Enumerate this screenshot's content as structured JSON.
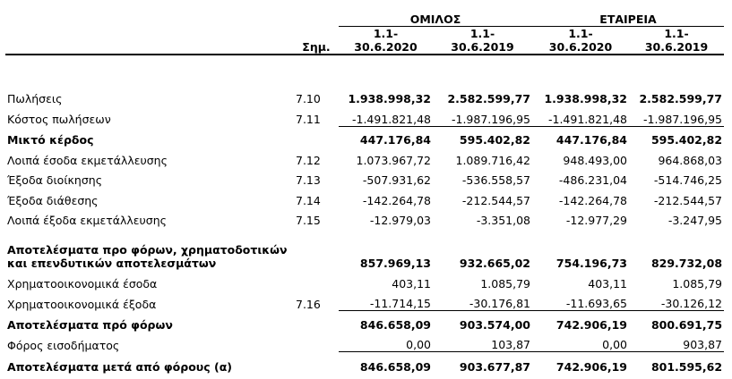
{
  "header": {
    "note_label": "Σημ.",
    "group_label": "ΟΜΙΛΟΣ",
    "company_label": "ΕΤΑΙΡΕΙΑ",
    "periods": [
      {
        "line1": "1.1-",
        "line2": "30.6.2020"
      },
      {
        "line1": "1.1-",
        "line2": "30.6.2019"
      },
      {
        "line1": "1.1-",
        "line2": "30.6.2020"
      },
      {
        "line1": "1.1-",
        "line2": "30.6.2019"
      }
    ]
  },
  "rows": [
    {
      "label": "Πωλήσεις",
      "note": "7.10",
      "values": [
        "1.938.998,32",
        "2.582.599,77",
        "1.938.998,32",
        "2.582.599,77"
      ]
    },
    {
      "label": "Κόστος πωλήσεων",
      "note": "7.11",
      "values": [
        "-1.491.821,48",
        "-1.987.196,95",
        "-1.491.821,48",
        "-1.987.196,95"
      ]
    },
    {
      "label": "Μικτό κέρδος",
      "note": "",
      "values": [
        "447.176,84",
        "595.402,82",
        "447.176,84",
        "595.402,82"
      ]
    },
    {
      "label": "Λοιπά έσοδα εκμετάλλευσης",
      "note": "7.12",
      "values": [
        "1.073.967,72",
        "1.089.716,42",
        "948.493,00",
        "964.868,03"
      ]
    },
    {
      "label": "Έξοδα διοίκησης",
      "note": "7.13",
      "values": [
        "-507.931,62",
        "-536.558,57",
        "-486.231,04",
        "-514.746,25"
      ]
    },
    {
      "label": "Έξοδα διάθεσης",
      "note": "7.14",
      "values": [
        "-142.264,78",
        "-212.544,57",
        "-142.264,78",
        "-212.544,57"
      ]
    },
    {
      "label": "Λοιπά έξοδα εκμετάλλευσης",
      "note": "7.15",
      "values": [
        "-12.979,03",
        "-3.351,08",
        "-12.977,29",
        "-3.247,95"
      ]
    },
    {
      "label": "Αποτελέσματα προ φόρων, χρηματοδοτικών και επενδυτικών αποτελεσμάτων",
      "note": "",
      "values": [
        "857.969,13",
        "932.665,02",
        "754.196,73",
        "829.732,08"
      ]
    },
    {
      "label": "Χρηματοοικονομικά έσοδα",
      "note": "",
      "values": [
        "403,11",
        "1.085,79",
        "403,11",
        "1.085,79"
      ]
    },
    {
      "label": "Χρηματοοικονομικά έξοδα",
      "note": "7.16",
      "values": [
        "-11.714,15",
        "-30.176,81",
        "-11.693,65",
        "-30.126,12"
      ]
    },
    {
      "label": "Αποτελέσματα πρό φόρων",
      "note": "",
      "values": [
        "846.658,09",
        "903.574,00",
        "742.906,19",
        "800.691,75"
      ]
    },
    {
      "label": "Φόρος εισοδήματος",
      "note": "",
      "values": [
        "0,00",
        "103,87",
        "0,00",
        "903,87"
      ]
    },
    {
      "label": "Αποτελέσματα μετά από φόρους (α)",
      "note": "",
      "values": [
        "846.658,09",
        "903.677,87",
        "742.906,19",
        "801.595,62"
      ]
    }
  ]
}
